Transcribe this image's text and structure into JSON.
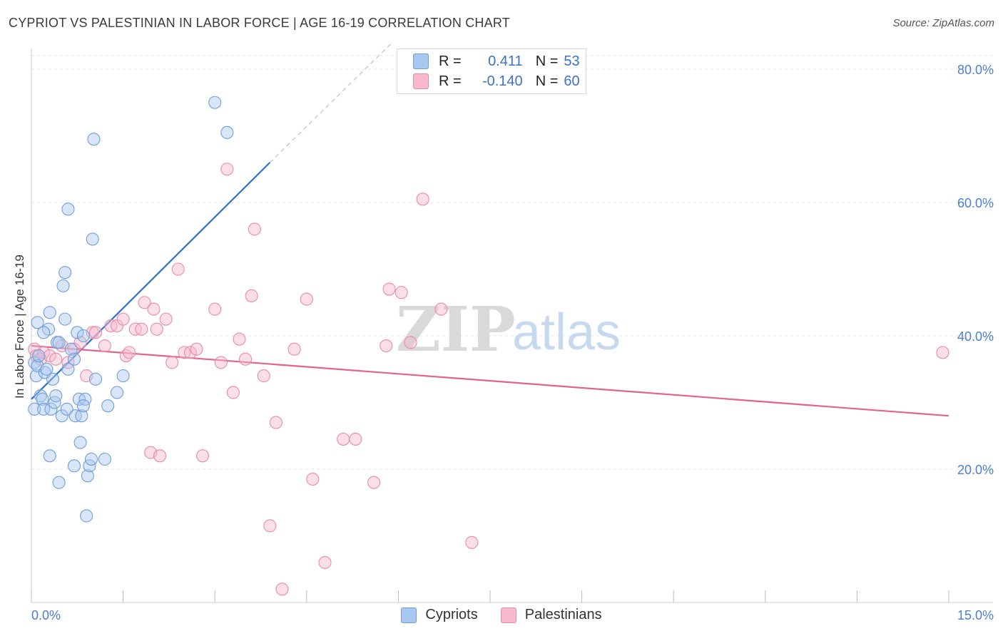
{
  "header": {
    "title": "CYPRIOT VS PALESTINIAN IN LABOR FORCE | AGE 16-19 CORRELATION CHART",
    "source": "Source: ZipAtlas.com"
  },
  "watermark": {
    "zip": "ZIP",
    "atlas": "atlas"
  },
  "legend": {
    "r_label": "R =",
    "n_label": "N =",
    "series": [
      {
        "name": "Cypriots",
        "r": "0.411",
        "n": "53",
        "fill": "#a9c8f0",
        "stroke": "#6f9ed9"
      },
      {
        "name": "Palestinians",
        "r": "-0.140",
        "n": "60",
        "fill": "#f7b9cb",
        "stroke": "#e88aa7"
      }
    ]
  },
  "colors": {
    "blue_line": "#2f6fd0",
    "pink_line": "#e0648f",
    "axis_label": "#4a7fcf",
    "grid": "#e4e4e4"
  },
  "chart_data": {
    "type": "scatter",
    "title": "CYPRIOT VS PALESTINIAN IN LABOR FORCE | AGE 16-19 CORRELATION CHART",
    "xlabel": "",
    "ylabel": "In Labor Force | Age 16-19",
    "xlim": [
      0,
      15
    ],
    "ylim": [
      0,
      80
    ],
    "x_tick_labels": [
      "0.0%",
      "15.0%"
    ],
    "y_ticks": [
      20,
      40,
      60,
      80
    ],
    "y_tick_labels": [
      "20.0%",
      "40.0%",
      "60.0%",
      "80.0%"
    ],
    "grid": true,
    "series": [
      {
        "name": "Cypriots",
        "points": [
          [
            0.05,
            36.0
          ],
          [
            0.08,
            34.0
          ],
          [
            0.1,
            35.5
          ],
          [
            0.12,
            37.0
          ],
          [
            0.05,
            29.0
          ],
          [
            0.15,
            31.0
          ],
          [
            0.18,
            30.5
          ],
          [
            0.2,
            29.0
          ],
          [
            0.22,
            34.5
          ],
          [
            0.25,
            35.0
          ],
          [
            0.28,
            41.0
          ],
          [
            0.3,
            43.5
          ],
          [
            0.32,
            29.0
          ],
          [
            0.35,
            33.5
          ],
          [
            0.38,
            30.0
          ],
          [
            0.4,
            31.0
          ],
          [
            0.42,
            39.0
          ],
          [
            0.45,
            39.0
          ],
          [
            0.5,
            28.0
          ],
          [
            0.52,
            47.5
          ],
          [
            0.55,
            49.5
          ],
          [
            0.58,
            29.0
          ],
          [
            0.6,
            59.0
          ],
          [
            0.65,
            38.0
          ],
          [
            0.7,
            36.5
          ],
          [
            0.72,
            28.0
          ],
          [
            0.75,
            40.5
          ],
          [
            0.78,
            30.5
          ],
          [
            0.8,
            24.0
          ],
          [
            0.82,
            28.0
          ],
          [
            0.85,
            40.0
          ],
          [
            0.88,
            30.5
          ],
          [
            0.9,
            13.0
          ],
          [
            0.92,
            19.0
          ],
          [
            0.95,
            20.5
          ],
          [
            0.98,
            21.5
          ],
          [
            1.0,
            54.5
          ],
          [
            1.02,
            69.5
          ],
          [
            1.05,
            33.5
          ],
          [
            1.2,
            21.5
          ],
          [
            1.25,
            29.5
          ],
          [
            1.4,
            31.5
          ],
          [
            1.5,
            34.0
          ],
          [
            3.0,
            75.0
          ],
          [
            3.2,
            70.5
          ],
          [
            0.3,
            22.0
          ],
          [
            0.45,
            18.0
          ],
          [
            0.7,
            20.5
          ],
          [
            0.55,
            42.5
          ],
          [
            0.2,
            40.5
          ],
          [
            0.1,
            42.0
          ],
          [
            0.6,
            35.0
          ],
          [
            0.85,
            29.5
          ]
        ]
      },
      {
        "name": "Palestinians",
        "points": [
          [
            0.05,
            38.0
          ],
          [
            0.08,
            37.0
          ],
          [
            0.15,
            36.5
          ],
          [
            0.2,
            37.5
          ],
          [
            0.3,
            37.0
          ],
          [
            0.4,
            36.5
          ],
          [
            0.5,
            38.5
          ],
          [
            0.6,
            36.0
          ],
          [
            0.7,
            38.0
          ],
          [
            0.8,
            39.0
          ],
          [
            0.9,
            34.0
          ],
          [
            1.0,
            40.5
          ],
          [
            1.05,
            40.5
          ],
          [
            1.2,
            38.5
          ],
          [
            1.3,
            41.5
          ],
          [
            1.4,
            41.5
          ],
          [
            1.5,
            42.5
          ],
          [
            1.55,
            37.0
          ],
          [
            1.6,
            37.5
          ],
          [
            1.7,
            41.0
          ],
          [
            1.8,
            41.0
          ],
          [
            1.85,
            45.0
          ],
          [
            1.95,
            22.5
          ],
          [
            2.0,
            44.0
          ],
          [
            2.05,
            41.0
          ],
          [
            2.1,
            22.0
          ],
          [
            2.2,
            42.5
          ],
          [
            2.3,
            36.0
          ],
          [
            2.4,
            50.0
          ],
          [
            2.5,
            37.5
          ],
          [
            2.6,
            37.5
          ],
          [
            2.7,
            38.0
          ],
          [
            2.8,
            22.0
          ],
          [
            3.0,
            44.0
          ],
          [
            3.1,
            36.0
          ],
          [
            3.2,
            65.0
          ],
          [
            3.3,
            31.5
          ],
          [
            3.4,
            39.5
          ],
          [
            3.5,
            36.5
          ],
          [
            3.6,
            46.0
          ],
          [
            3.65,
            56.0
          ],
          [
            3.8,
            34.0
          ],
          [
            3.9,
            11.5
          ],
          [
            4.0,
            27.0
          ],
          [
            4.1,
            2.0
          ],
          [
            4.3,
            38.0
          ],
          [
            4.5,
            45.5
          ],
          [
            4.6,
            18.5
          ],
          [
            4.8,
            6.0
          ],
          [
            5.1,
            24.5
          ],
          [
            5.3,
            24.5
          ],
          [
            5.6,
            18.0
          ],
          [
            5.8,
            38.5
          ],
          [
            5.85,
            47.0
          ],
          [
            6.05,
            46.5
          ],
          [
            6.2,
            39.0
          ],
          [
            6.4,
            60.5
          ],
          [
            6.7,
            44.0
          ],
          [
            7.2,
            9.0
          ],
          [
            14.9,
            37.5
          ]
        ]
      }
    ],
    "trend_lines": [
      {
        "name": "Cypriots",
        "x": [
          0.0,
          3.9
        ],
        "y": [
          30.5,
          66.0
        ],
        "extension": {
          "x": [
            3.9,
            5.9
          ],
          "y": [
            66.0,
            84.0
          ]
        }
      },
      {
        "name": "Palestinians",
        "x": [
          0.0,
          15.0
        ],
        "y": [
          38.5,
          28.0
        ]
      }
    ]
  }
}
